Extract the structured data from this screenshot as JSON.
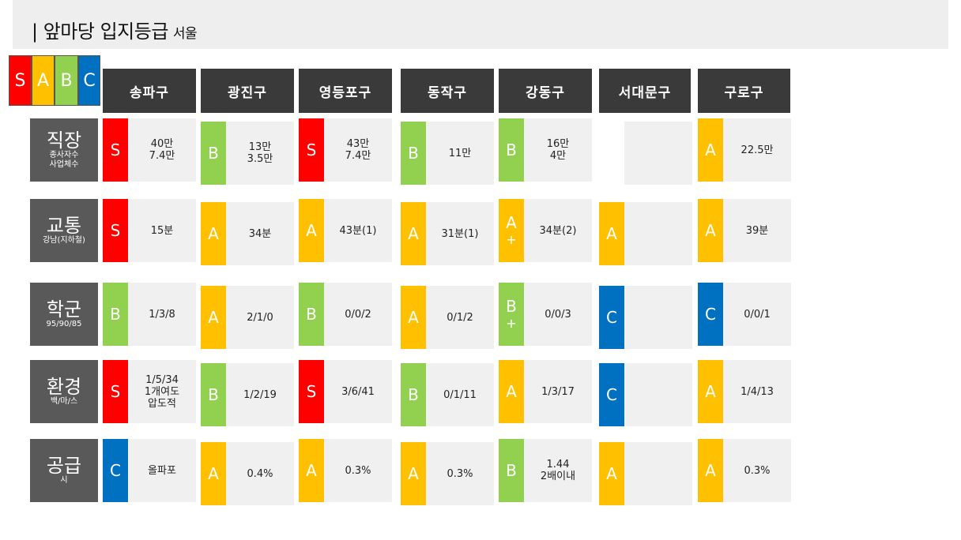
{
  "title": {
    "main": "| 앞마당 입지등급",
    "sub": "서울"
  },
  "legend": [
    "S",
    "A",
    "B",
    "C"
  ],
  "colors": {
    "S": "#ff0000",
    "A": "#ffc000",
    "B": "#92d050",
    "C": "#0070c0",
    "header": "#3a3a3a",
    "row_label": "#595959",
    "cell": "#f0f0f0"
  },
  "districts": [
    "송파구",
    "광진구",
    "영등포구",
    "동작구",
    "강동구",
    "서대문구",
    "구로구"
  ],
  "rows": [
    {
      "label": "직장",
      "sub": "종사자수\n사업체수",
      "cells": [
        {
          "grade": "S",
          "plus": "",
          "value": "40만\n7.4만"
        },
        {
          "grade": "B",
          "plus": "",
          "value": "13만\n3.5만"
        },
        {
          "grade": "S",
          "plus": "",
          "value": "43만\n7.4만"
        },
        {
          "grade": "B",
          "plus": "",
          "value": "11만"
        },
        {
          "grade": "B",
          "plus": "",
          "value": "16만\n4만"
        },
        {
          "grade": "",
          "plus": "",
          "value": ""
        },
        {
          "grade": "A",
          "plus": "",
          "value": "22.5만"
        }
      ]
    },
    {
      "label": "교통",
      "sub": "강남(지하철)",
      "cells": [
        {
          "grade": "S",
          "plus": "",
          "value": "15분"
        },
        {
          "grade": "A",
          "plus": "",
          "value": "34분"
        },
        {
          "grade": "A",
          "plus": "",
          "value": "43분(1)"
        },
        {
          "grade": "A",
          "plus": "",
          "value": "31분(1)"
        },
        {
          "grade": "A",
          "plus": "+",
          "value": "34분(2)"
        },
        {
          "grade": "A",
          "plus": "",
          "value": ""
        },
        {
          "grade": "A",
          "plus": "",
          "value": "39분"
        }
      ]
    },
    {
      "label": "학군",
      "sub": "95/90/85",
      "cells": [
        {
          "grade": "B",
          "plus": "",
          "value": "1/3/8"
        },
        {
          "grade": "A",
          "plus": "",
          "value": "2/1/0"
        },
        {
          "grade": "B",
          "plus": "",
          "value": "0/0/2"
        },
        {
          "grade": "A",
          "plus": "",
          "value": "0/1/2"
        },
        {
          "grade": "B",
          "plus": "+",
          "value": "0/0/3"
        },
        {
          "grade": "C",
          "plus": "",
          "value": ""
        },
        {
          "grade": "C",
          "plus": "",
          "value": "0/0/1"
        }
      ]
    },
    {
      "label": "환경",
      "sub": "백/마/스",
      "cells": [
        {
          "grade": "S",
          "plus": "",
          "value": "1/5/34\n1개여도\n압도적"
        },
        {
          "grade": "B",
          "plus": "",
          "value": "1/2/19"
        },
        {
          "grade": "S",
          "plus": "",
          "value": "3/6/41"
        },
        {
          "grade": "B",
          "plus": "",
          "value": "0/1/11"
        },
        {
          "grade": "A",
          "plus": "",
          "value": "1/3/17"
        },
        {
          "grade": "C",
          "plus": "",
          "value": ""
        },
        {
          "grade": "A",
          "plus": "",
          "value": "1/4/13"
        }
      ]
    },
    {
      "label": "공급",
      "sub": "시",
      "cells": [
        {
          "grade": "C",
          "plus": "",
          "value": "올파포"
        },
        {
          "grade": "A",
          "plus": "",
          "value": "0.4%"
        },
        {
          "grade": "A",
          "plus": "",
          "value": "0.3%"
        },
        {
          "grade": "A",
          "plus": "",
          "value": "0.3%"
        },
        {
          "grade": "B",
          "plus": "",
          "value": "1.44\n2배이내"
        },
        {
          "grade": "A",
          "plus": "",
          "value": ""
        },
        {
          "grade": "A",
          "plus": "",
          "value": "0.3%"
        }
      ]
    }
  ]
}
